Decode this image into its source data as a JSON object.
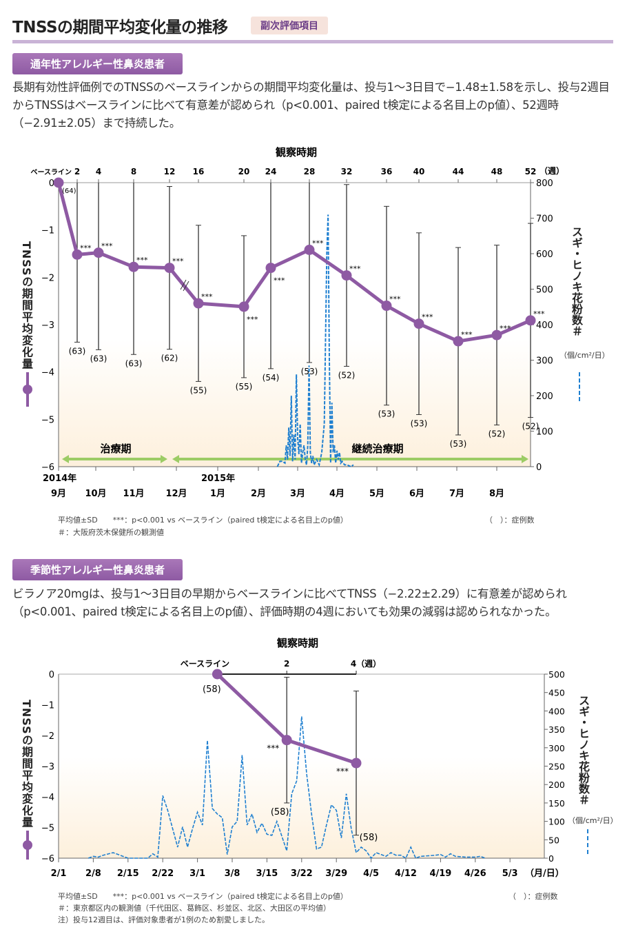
{
  "header": {
    "title": "TNSSの期間平均変化量の推移",
    "badge": "副次評価項目"
  },
  "section1": {
    "label": "通年性アレルギー性鼻炎患者",
    "text": "長期有効性評価例でのTNSSのベースラインからの期間平均変化量は、投与1～3日目で−1.48±1.58を示し、投与2週目からTNSSはベースラインに比べて有意差が認められ（p<0.001、paired t検定による名目上のp値）、52週時（−2.91±2.05）まで持続した。",
    "footnote1": "平均値±SD　　***：p<0.001 vs ベースライン（paired t検定による名目上のp値）",
    "footnote2": "＃：大阪府茨木保健所の観測値",
    "footnote_n": "（　）：症例数"
  },
  "section2": {
    "label": "季節性アレルギー性鼻炎患者",
    "text": "ビラノア20mgは、投与1～3日目の早期からベースラインに比べてTNSS（−2.22±2.29）に有意差が認められ（p<0.001、paired t検定による名目上のp値）、評価時期の4週においても効果の減弱は認められなかった。",
    "footnote1": "平均値±SD　　***：p<0.001 vs ベースライン（paired t検定による名目上のp値）",
    "footnote2": "＃：東京都区内の観測値（千代田区、葛飾区、杉並区、北区、大田区の平均値）",
    "footnote3": "注）投与12週目は、評価対象患者が1例のため割愛しました。",
    "footnote_n": "（　）：症例数"
  },
  "colors": {
    "tnss": "#8e5aa3",
    "pollen": "#1e7fd0",
    "period_arrow": "#9ccc65",
    "badge_bg": "#f6e3dc"
  },
  "chart_data": [
    {
      "type": "line",
      "title": "観察時期",
      "ylabel": "TNSSの期間平均変化量",
      "y2label": "スギ・ヒノキ花粉数＃",
      "y2unit": "（個/cm²/日）",
      "ylim": [
        -6,
        0
      ],
      "yticks": [
        "0",
        "−1",
        "−2",
        "−3",
        "−4",
        "−5",
        "−6"
      ],
      "y2lim": [
        0,
        800
      ],
      "y2ticks": [
        "0",
        "100",
        "200",
        "300",
        "400",
        "500",
        "600",
        "700",
        "800"
      ],
      "week_axis_label": "（週）",
      "week_labels": [
        "ベースライン",
        "2",
        "4",
        "8",
        "12",
        "16",
        "20",
        "24",
        "28",
        "32",
        "36",
        "40",
        "44",
        "48",
        "52"
      ],
      "year_labels": [
        "2014年",
        "2015年"
      ],
      "month_labels": [
        "9月",
        "10月",
        "11月",
        "12月",
        "1月",
        "2月",
        "3月",
        "4月",
        "5月",
        "6月",
        "7月",
        "8月"
      ],
      "periods": [
        "治療期",
        "継続治療期"
      ],
      "significance": "***",
      "series": [
        {
          "kind": "tnss_mean_sd",
          "weeks": [
            0,
            2,
            4,
            8,
            12,
            16,
            20,
            24,
            28,
            32,
            36,
            40,
            44,
            48,
            52
          ],
          "mean": [
            0,
            -1.52,
            -1.48,
            -1.78,
            -1.8,
            -2.55,
            -2.62,
            -1.8,
            -1.42,
            -1.96,
            -2.6,
            -2.98,
            -3.35,
            -3.22,
            -2.91
          ],
          "sd": [
            0,
            1.85,
            2.05,
            1.85,
            1.72,
            1.65,
            1.5,
            2.13,
            2.38,
            1.92,
            2.1,
            1.92,
            1.98,
            1.9,
            2.05
          ],
          "n": [
            "(64)",
            "(63)",
            "(63)",
            "(63)",
            "(62)",
            "(55)",
            "(55)",
            "(54)",
            "(53)",
            "(52)",
            "(53)",
            "(53)",
            "(53)",
            "(52)",
            "(52)"
          ]
        },
        {
          "kind": "pollen",
          "dates": [
            "2/13",
            "2/15",
            "2/17",
            "2/19",
            "2/20",
            "2/21",
            "2/22",
            "2/23",
            "2/24",
            "2/25",
            "2/26",
            "2/27",
            "2/28",
            "3/1",
            "3/2",
            "3/3",
            "3/4",
            "3/5",
            "3/6",
            "3/7",
            "3/8",
            "3/9",
            "3/10",
            "3/11",
            "3/12",
            "3/13",
            "3/14",
            "3/16",
            "3/18",
            "3/20",
            "3/22",
            "3/24",
            "3/25",
            "3/26",
            "3/27",
            "3/28",
            "3/29",
            "3/30",
            "3/31",
            "4/1",
            "4/2",
            "4/3",
            "4/4",
            "4/5",
            "4/7",
            "4/9",
            "4/12",
            "4/14"
          ],
          "values": [
            0,
            15,
            15,
            10,
            60,
            20,
            110,
            30,
            200,
            15,
            90,
            20,
            260,
            80,
            35,
            120,
            10,
            40,
            60,
            20,
            5,
            60,
            285,
            40,
            10,
            30,
            5,
            20,
            5,
            40,
            120,
            600,
            710,
            300,
            10,
            180,
            40,
            60,
            10,
            45,
            20,
            40,
            10,
            15,
            5,
            5,
            0,
            5
          ]
        }
      ]
    },
    {
      "type": "line",
      "title": "観察時期",
      "ylabel": "TNSSの期間平均変化量",
      "y2label": "スギ・ヒノキ花粉数＃",
      "y2unit": "（個/cm²/日）",
      "ylim": [
        -6,
        0
      ],
      "yticks": [
        "0",
        "−1",
        "−2",
        "−3",
        "−4",
        "−5",
        "−6"
      ],
      "y2lim": [
        0,
        500
      ],
      "y2ticks": [
        "0",
        "50",
        "100",
        "150",
        "200",
        "250",
        "300",
        "350",
        "400",
        "450",
        "500"
      ],
      "week_labels": [
        "ベースライン",
        "2",
        "4（週）"
      ],
      "xticks": [
        "2/1",
        "2/8",
        "2/15",
        "2/22",
        "3/1",
        "3/8",
        "3/15",
        "3/22",
        "3/29",
        "4/5",
        "4/12",
        "4/19",
        "4/26",
        "5/3"
      ],
      "xunit": "（月/日）",
      "significance": "***",
      "series": [
        {
          "kind": "tnss_mean_sd",
          "dates": [
            "3/5",
            "3/19",
            "4/2"
          ],
          "mean": [
            0,
            -2.15,
            -2.9
          ],
          "sd": [
            0,
            2.05,
            2.35
          ],
          "n": [
            "(58)",
            "(58)",
            "(58)"
          ]
        },
        {
          "kind": "pollen",
          "dates": [
            "2/7",
            "2/8",
            "2/9",
            "2/10",
            "2/12",
            "2/14",
            "2/15",
            "2/19",
            "2/20",
            "2/21",
            "2/22",
            "2/23",
            "2/24",
            "2/25",
            "2/26",
            "2/27",
            "2/28",
            "3/1",
            "3/2",
            "3/3",
            "3/4",
            "3/5",
            "3/6",
            "3/7",
            "3/8",
            "3/9",
            "3/10",
            "3/11",
            "3/12",
            "3/13",
            "3/14",
            "3/15",
            "3/16",
            "3/17",
            "3/18",
            "3/19",
            "3/20",
            "3/21",
            "3/22",
            "3/23",
            "3/24",
            "3/25",
            "3/26",
            "3/27",
            "3/28",
            "3/29",
            "3/30",
            "3/31",
            "4/1",
            "4/2",
            "4/3",
            "4/4",
            "4/5",
            "4/6",
            "4/7",
            "4/8",
            "4/9",
            "4/10",
            "4/11",
            "4/12",
            "4/13",
            "4/14",
            "4/15",
            "4/18",
            "4/19",
            "4/20",
            "4/21",
            "4/22",
            "4/24",
            "4/26",
            "4/27",
            "4/28"
          ],
          "values": [
            0,
            5,
            3,
            8,
            15,
            5,
            0,
            0,
            12,
            3,
            170,
            130,
            80,
            30,
            85,
            30,
            80,
            125,
            90,
            320,
            135,
            120,
            110,
            10,
            85,
            100,
            280,
            90,
            120,
            70,
            95,
            65,
            62,
            100,
            60,
            20,
            175,
            210,
            385,
            230,
            120,
            25,
            30,
            90,
            145,
            130,
            55,
            175,
            80,
            15,
            30,
            20,
            0,
            15,
            10,
            5,
            15,
            8,
            8,
            0,
            30,
            0,
            5,
            8,
            10,
            3,
            12,
            5,
            3,
            3,
            5,
            0
          ]
        }
      ]
    }
  ]
}
